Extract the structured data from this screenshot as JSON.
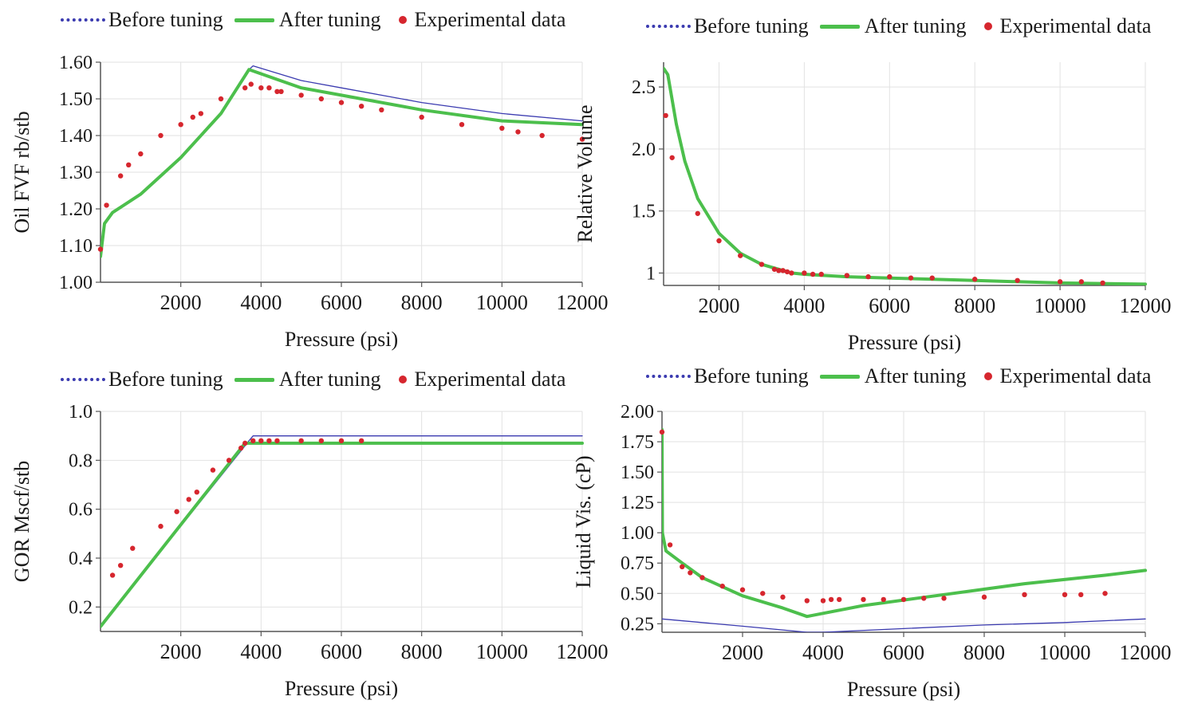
{
  "legend": {
    "before": "Before tuning",
    "after": "After tuning",
    "experimental": "Experimental data"
  },
  "colors": {
    "before": "#3b3bb0",
    "after": "#4cbf4c",
    "experimental": "#d6262e",
    "grid": "#e2e2e2",
    "axis": "#555555"
  },
  "chart_data": [
    {
      "id": "oil-fvf",
      "type": "line",
      "title": "",
      "xlabel": "Pressure (psi)",
      "ylabel": "Oil FVF rb/stb",
      "xlim": [
        0,
        12000
      ],
      "ylim": [
        1.0,
        1.6
      ],
      "xticks": [
        2000,
        4000,
        6000,
        8000,
        10000,
        12000
      ],
      "xtick_labels": [
        "2000",
        "4000",
        "6000",
        "8000",
        "10000",
        "12000"
      ],
      "yticks": [
        1.0,
        1.1,
        1.2,
        1.3,
        1.4,
        1.5,
        1.6
      ],
      "ytick_labels": [
        "1.00",
        "1.10",
        "1.20",
        "1.30",
        "1.40",
        "1.50",
        "1.60"
      ],
      "series": [
        {
          "name": "Before tuning",
          "style": "before",
          "x": [
            0,
            100,
            300,
            1000,
            2000,
            3000,
            3700,
            3800,
            5000,
            6000,
            8000,
            10000,
            12000
          ],
          "y": [
            1.07,
            1.16,
            1.19,
            1.24,
            1.34,
            1.46,
            1.58,
            1.59,
            1.55,
            1.53,
            1.49,
            1.46,
            1.44
          ]
        },
        {
          "name": "After tuning",
          "style": "after",
          "x": [
            0,
            100,
            300,
            1000,
            2000,
            3000,
            3700,
            5000,
            6000,
            8000,
            10000,
            12000
          ],
          "y": [
            1.07,
            1.16,
            1.19,
            1.24,
            1.34,
            1.46,
            1.58,
            1.53,
            1.51,
            1.47,
            1.44,
            1.43
          ]
        },
        {
          "name": "Experimental data",
          "style": "experimental",
          "x": [
            0,
            150,
            500,
            700,
            1000,
            1500,
            2000,
            2300,
            2500,
            3000,
            3600,
            3750,
            4000,
            4200,
            4400,
            4500,
            5000,
            5500,
            6000,
            6500,
            7000,
            8000,
            9000,
            10000,
            10400,
            11000,
            12000
          ],
          "y": [
            1.09,
            1.21,
            1.29,
            1.32,
            1.35,
            1.4,
            1.43,
            1.45,
            1.46,
            1.5,
            1.53,
            1.54,
            1.53,
            1.53,
            1.52,
            1.52,
            1.51,
            1.5,
            1.49,
            1.48,
            1.47,
            1.45,
            1.43,
            1.42,
            1.41,
            1.4,
            1.39
          ]
        }
      ]
    },
    {
      "id": "relative-volume",
      "type": "line",
      "title": "",
      "xlabel": "Pressure (psi)",
      "ylabel": "Relative Volume",
      "xlim": [
        700,
        12000
      ],
      "ylim": [
        0.9,
        2.7
      ],
      "xticks": [
        2000,
        4000,
        6000,
        8000,
        10000,
        12000
      ],
      "xtick_labels": [
        "2000",
        "4000",
        "6000",
        "8000",
        "10000",
        "12000"
      ],
      "yticks": [
        1.0,
        1.5,
        2.0,
        2.5
      ],
      "ytick_labels": [
        "1",
        "1.5",
        "2.0",
        "2.5"
      ],
      "series": [
        {
          "name": "After tuning",
          "style": "after",
          "x": [
            700,
            800,
            1000,
            1200,
            1500,
            2000,
            2500,
            3000,
            3500,
            3700,
            4000,
            5000,
            6000,
            8000,
            10000,
            12000
          ],
          "y": [
            2.65,
            2.6,
            2.2,
            1.9,
            1.6,
            1.32,
            1.16,
            1.07,
            1.02,
            1.0,
            0.99,
            0.97,
            0.96,
            0.94,
            0.92,
            0.91
          ]
        },
        {
          "name": "Experimental data",
          "style": "experimental",
          "x": [
            750,
            900,
            1500,
            2000,
            2500,
            3000,
            3300,
            3400,
            3500,
            3600,
            3700,
            4000,
            4200,
            4400,
            5000,
            5500,
            6000,
            6500,
            7000,
            8000,
            9000,
            10000,
            10500,
            11000
          ],
          "y": [
            2.27,
            1.93,
            1.48,
            1.26,
            1.14,
            1.07,
            1.03,
            1.02,
            1.02,
            1.01,
            1.0,
            1.0,
            0.99,
            0.99,
            0.98,
            0.97,
            0.97,
            0.96,
            0.96,
            0.95,
            0.94,
            0.93,
            0.93,
            0.92
          ]
        }
      ]
    },
    {
      "id": "gor",
      "type": "line",
      "title": "",
      "xlabel": "Pressure (psi)",
      "ylabel": "GOR Mscf/stb",
      "xlim": [
        0,
        12000
      ],
      "ylim": [
        0.1,
        1.0
      ],
      "xticks": [
        2000,
        4000,
        6000,
        8000,
        10000,
        12000
      ],
      "xtick_labels": [
        "2000",
        "4000",
        "6000",
        "8000",
        "10000",
        "12000"
      ],
      "yticks": [
        0.2,
        0.4,
        0.6,
        0.8,
        1.0
      ],
      "ytick_labels": [
        "0.2",
        "0.4",
        "0.6",
        "0.8",
        "1.0"
      ],
      "series": [
        {
          "name": "Before tuning",
          "style": "before",
          "x": [
            0,
            3700,
            3800,
            12000
          ],
          "y": [
            0.12,
            0.88,
            0.9,
            0.9
          ]
        },
        {
          "name": "After tuning",
          "style": "after",
          "x": [
            0,
            3600,
            12000
          ],
          "y": [
            0.12,
            0.87,
            0.87
          ]
        },
        {
          "name": "Experimental data",
          "style": "experimental",
          "x": [
            300,
            500,
            800,
            1500,
            1900,
            2200,
            2400,
            2800,
            3200,
            3500,
            3600,
            3800,
            4000,
            4200,
            4400,
            5000,
            5500,
            6000,
            6500
          ],
          "y": [
            0.33,
            0.37,
            0.44,
            0.53,
            0.59,
            0.64,
            0.67,
            0.76,
            0.8,
            0.85,
            0.87,
            0.88,
            0.88,
            0.88,
            0.88,
            0.88,
            0.88,
            0.88,
            0.88
          ]
        }
      ]
    },
    {
      "id": "liquid-viscosity",
      "type": "line",
      "title": "",
      "xlabel": "Pressure (psi)",
      "ylabel": "Liquid Vis. (cP)",
      "xlim": [
        0,
        12000
      ],
      "ylim": [
        0.18,
        2.0
      ],
      "xticks": [
        2000,
        4000,
        6000,
        8000,
        10000,
        12000
      ],
      "xtick_labels": [
        "2000",
        "4000",
        "6000",
        "8000",
        "10000",
        "12000"
      ],
      "yticks": [
        0.25,
        0.5,
        0.75,
        1.0,
        1.25,
        1.5,
        1.75,
        2.0
      ],
      "ytick_labels": [
        "0.25",
        "0.50",
        "0.75",
        "1.00",
        "1.25",
        "1.50",
        "1.75",
        "2.00"
      ],
      "series": [
        {
          "name": "Before tuning",
          "style": "before",
          "x": [
            0,
            2000,
            3600,
            4000,
            6000,
            8000,
            10000,
            12000
          ],
          "y": [
            0.29,
            0.23,
            0.18,
            0.18,
            0.21,
            0.24,
            0.26,
            0.29
          ]
        },
        {
          "name": "After tuning",
          "style": "after",
          "x": [
            0,
            10,
            100,
            500,
            1000,
            2000,
            3000,
            3600,
            5000,
            7000,
            9000,
            11000,
            12000
          ],
          "y": [
            1.85,
            1.0,
            0.85,
            0.75,
            0.63,
            0.48,
            0.38,
            0.31,
            0.4,
            0.49,
            0.58,
            0.65,
            0.69
          ]
        },
        {
          "name": "Experimental data",
          "style": "experimental",
          "x": [
            0,
            200,
            500,
            700,
            1000,
            1500,
            2000,
            2500,
            3000,
            3600,
            4000,
            4200,
            4400,
            5000,
            5500,
            6000,
            6500,
            7000,
            8000,
            9000,
            10000,
            10400,
            11000
          ],
          "y": [
            1.83,
            0.9,
            0.72,
            0.67,
            0.63,
            0.56,
            0.53,
            0.5,
            0.47,
            0.44,
            0.44,
            0.45,
            0.45,
            0.45,
            0.45,
            0.45,
            0.46,
            0.46,
            0.47,
            0.49,
            0.49,
            0.49,
            0.5
          ]
        }
      ]
    }
  ]
}
